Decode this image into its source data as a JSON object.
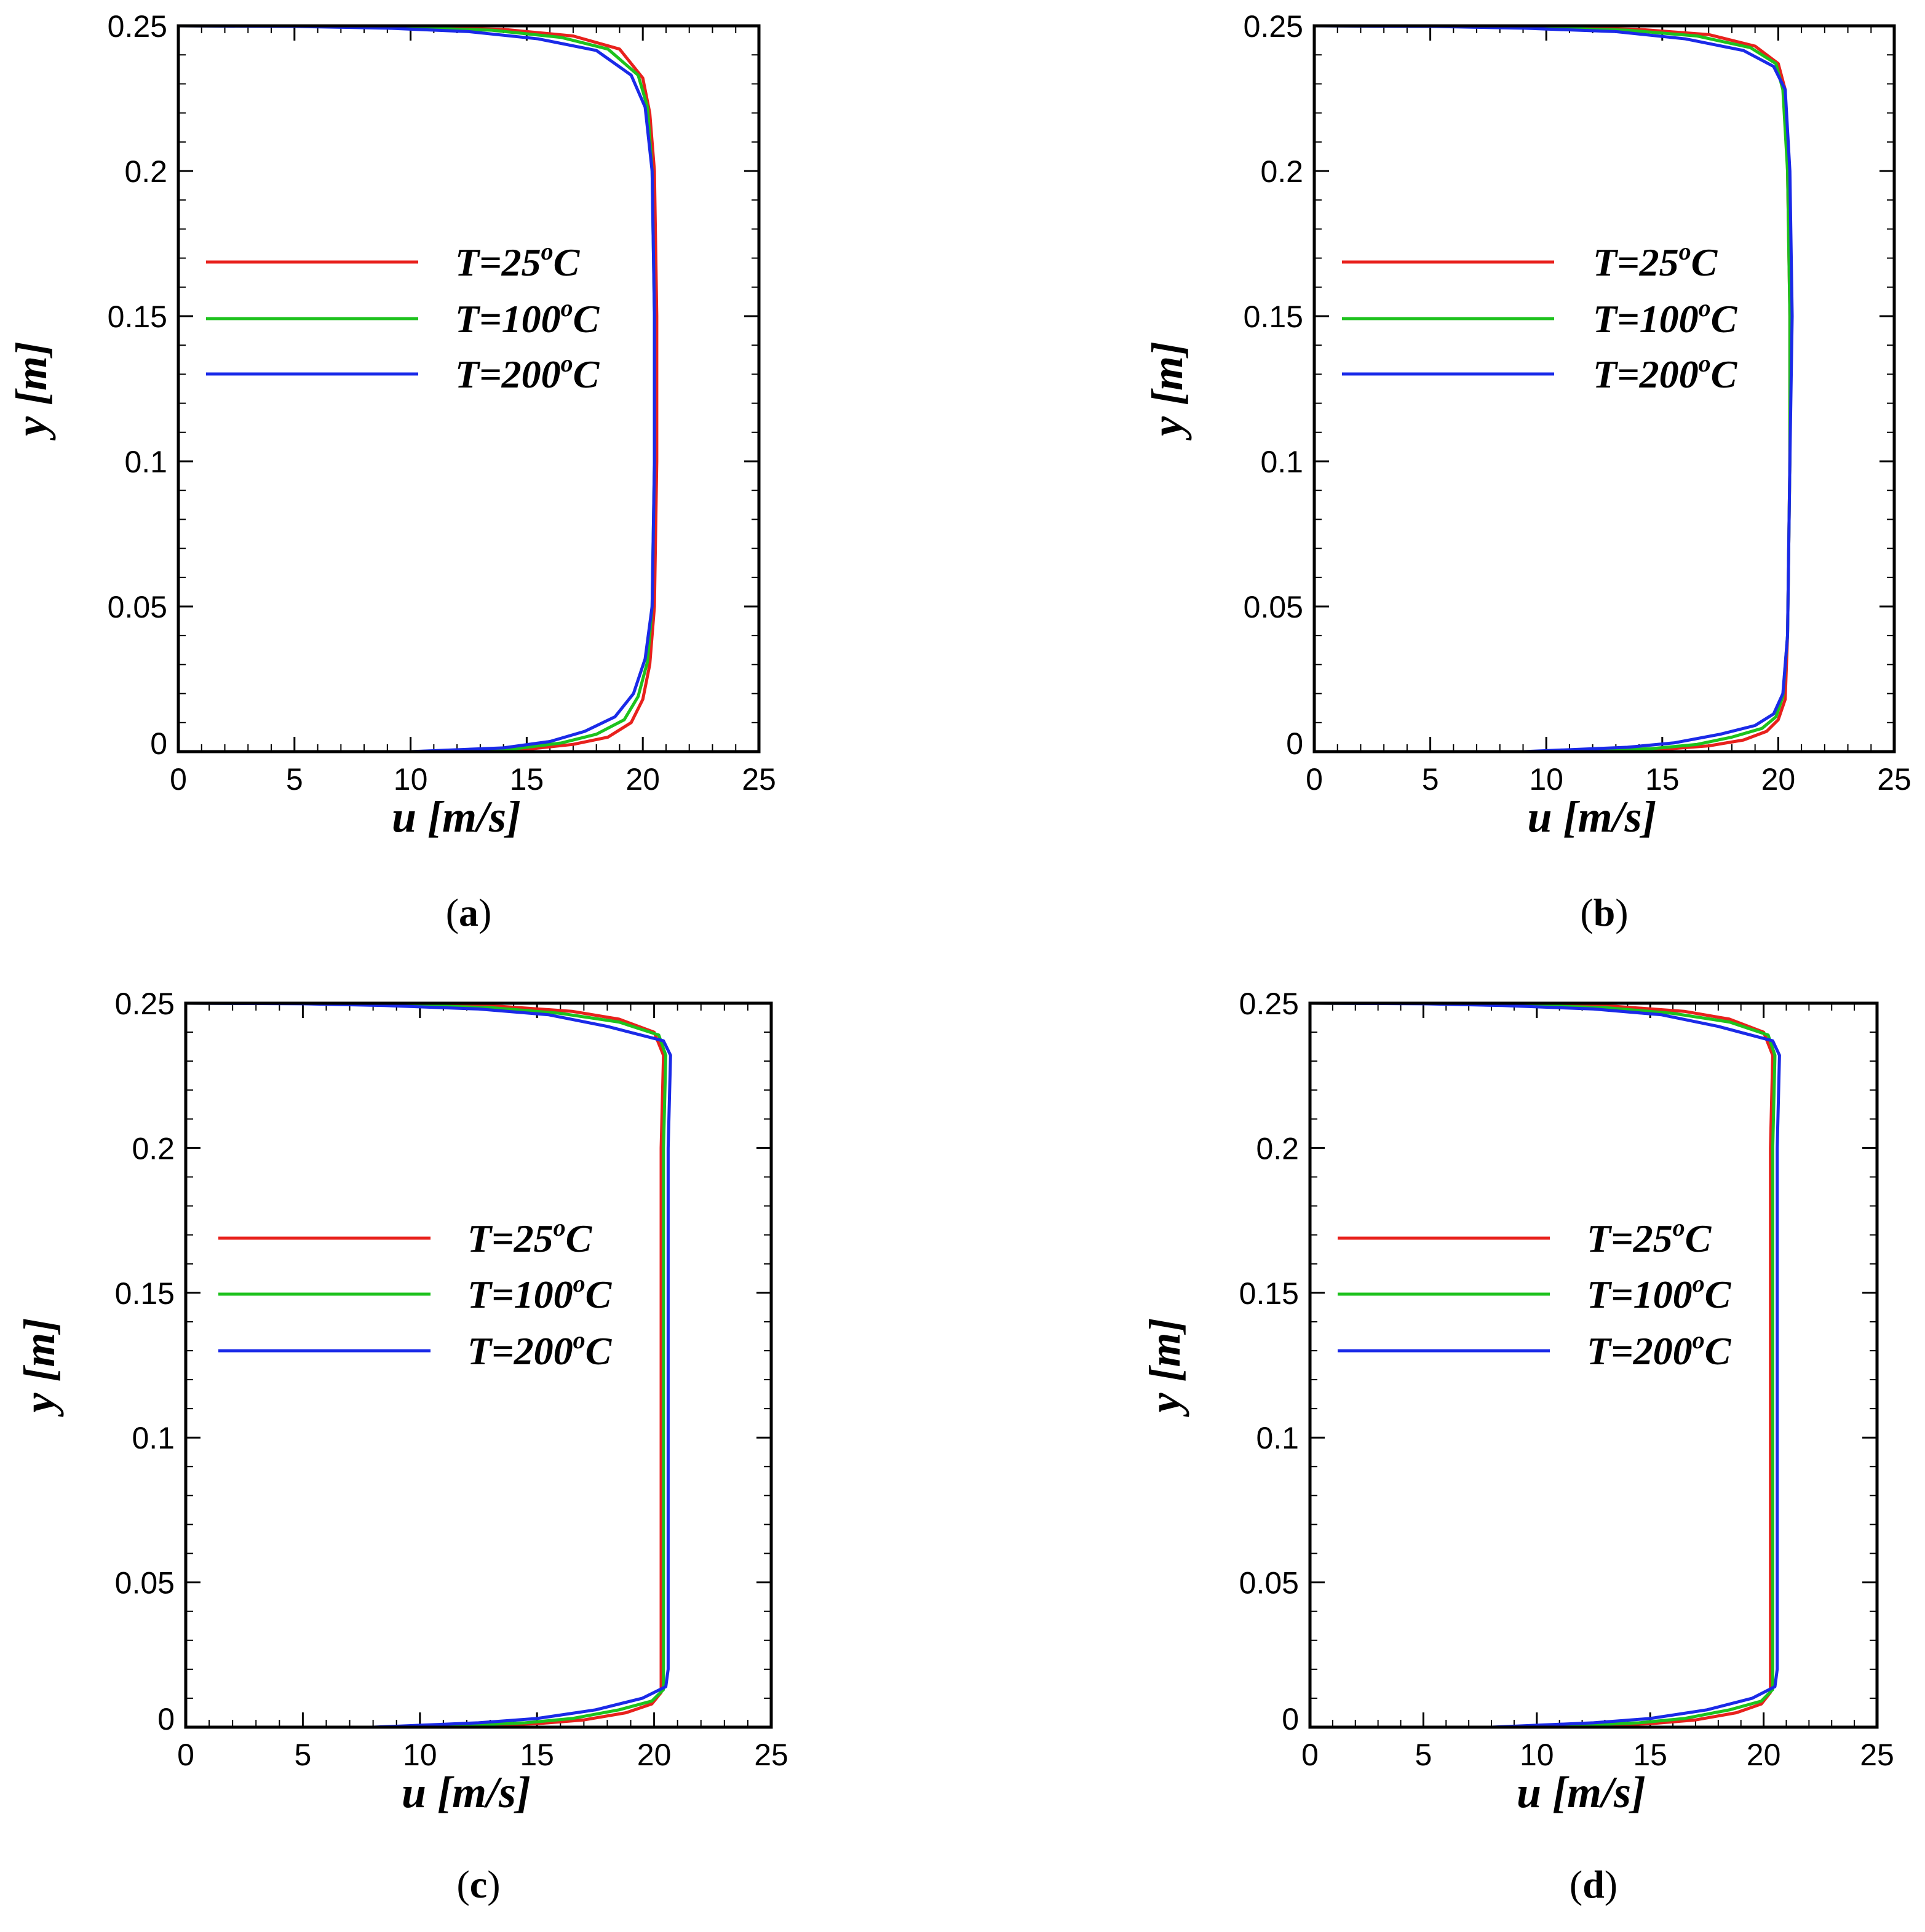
{
  "chart_data": [
    {
      "type": "line",
      "panel_label": "a",
      "xlabel": "u [m/s]",
      "ylabel": "y [m]",
      "xlim": [
        0,
        25
      ],
      "ylim": [
        0,
        0.25
      ],
      "xticks": [
        "0",
        "5",
        "10",
        "15",
        "20",
        "25"
      ],
      "yticks": [
        "0",
        "0.05",
        "0.1",
        "0.15",
        "0.2",
        "0.25"
      ],
      "grid": false,
      "legend_position": "upper-left",
      "series": [
        {
          "name": "T=25°C",
          "legend_main": "T=25",
          "legend_sup": "o",
          "legend_tail": "C",
          "color": "#e8211c",
          "x": [
            0,
            10,
            15,
            17,
            18.5,
            19.5,
            20.0,
            20.3,
            20.5,
            20.6,
            20.6,
            20.5,
            20.3,
            20.0,
            19.0,
            17.0,
            14.0,
            10.0,
            5.0,
            0
          ],
          "y": [
            0.0,
            0.0,
            0.0008,
            0.0025,
            0.005,
            0.01,
            0.018,
            0.03,
            0.05,
            0.1,
            0.15,
            0.2,
            0.22,
            0.232,
            0.242,
            0.2465,
            0.2488,
            0.2495,
            0.2499,
            0.25
          ]
        },
        {
          "name": "T=100°C",
          "legend_main": "T=100",
          "legend_sup": "o",
          "legend_tail": "C",
          "color": "#1dc21d",
          "x": [
            0,
            10,
            14.5,
            16.5,
            18.0,
            19.2,
            19.8,
            20.2,
            20.4,
            20.5,
            20.5,
            20.4,
            20.2,
            19.8,
            18.5,
            16.5,
            13.5,
            9.5,
            5.0,
            0
          ],
          "y": [
            0.0,
            0.0,
            0.001,
            0.003,
            0.006,
            0.011,
            0.019,
            0.031,
            0.05,
            0.1,
            0.15,
            0.2,
            0.222,
            0.233,
            0.242,
            0.246,
            0.2485,
            0.2494,
            0.2499,
            0.25
          ]
        },
        {
          "name": "T=200°C",
          "legend_main": "T=200",
          "legend_sup": "o",
          "legend_tail": "C",
          "color": "#1a2ae8",
          "x": [
            0,
            10,
            14,
            16,
            17.5,
            18.8,
            19.6,
            20.1,
            20.4,
            20.5,
            20.5,
            20.4,
            20.1,
            19.5,
            18.0,
            15.5,
            12.5,
            9.0,
            5.0,
            0
          ],
          "y": [
            0.0,
            0.0,
            0.0013,
            0.0035,
            0.007,
            0.012,
            0.02,
            0.032,
            0.05,
            0.1,
            0.15,
            0.2,
            0.222,
            0.233,
            0.2415,
            0.2455,
            0.248,
            0.2492,
            0.2498,
            0.25
          ]
        }
      ]
    },
    {
      "type": "line",
      "panel_label": "b",
      "xlabel": "u [m/s]",
      "ylabel": "y [m]",
      "xlim": [
        0,
        25
      ],
      "ylim": [
        0,
        0.25
      ],
      "xticks": [
        "0",
        "5",
        "10",
        "15",
        "20",
        "25"
      ],
      "yticks": [
        "0",
        "0.05",
        "0.1",
        "0.15",
        "0.2",
        "0.25"
      ],
      "grid": false,
      "legend_position": "upper-left",
      "series": [
        {
          "name": "T=25°C",
          "legend_main": "T=25",
          "legend_sup": "o",
          "legend_tail": "C",
          "color": "#e8211c",
          "x": [
            0,
            10,
            15,
            17,
            18.5,
            19.5,
            20.0,
            20.3,
            20.4,
            20.5,
            20.5,
            20.4,
            20.3,
            20.0,
            19.0,
            17.0,
            14.0,
            10.0,
            5.0,
            0
          ],
          "y": [
            0.0,
            0.0,
            0.0008,
            0.002,
            0.004,
            0.007,
            0.011,
            0.018,
            0.04,
            0.1,
            0.15,
            0.2,
            0.228,
            0.237,
            0.243,
            0.247,
            0.2488,
            0.2495,
            0.2499,
            0.25
          ]
        },
        {
          "name": "T=100°C",
          "legend_main": "T=100",
          "legend_sup": "o",
          "legend_tail": "C",
          "color": "#1dc21d",
          "x": [
            0,
            10,
            14.5,
            16.5,
            18.0,
            19.3,
            19.9,
            20.2,
            20.4,
            20.5,
            20.5,
            20.4,
            20.2,
            19.9,
            18.8,
            16.5,
            13.5,
            9.5,
            5.0,
            0
          ],
          "y": [
            0.0,
            0.0,
            0.001,
            0.0025,
            0.005,
            0.008,
            0.012,
            0.019,
            0.04,
            0.1,
            0.15,
            0.2,
            0.228,
            0.237,
            0.2425,
            0.2465,
            0.2485,
            0.2494,
            0.2499,
            0.25
          ]
        },
        {
          "name": "T=200°C",
          "legend_main": "T=200",
          "legend_sup": "o",
          "legend_tail": "C",
          "color": "#1a2ae8",
          "x": [
            0,
            9,
            13.5,
            15.5,
            17.5,
            19.0,
            19.8,
            20.2,
            20.4,
            20.5,
            20.6,
            20.5,
            20.3,
            19.8,
            18.5,
            16.0,
            13.0,
            9.0,
            5.0,
            0
          ],
          "y": [
            0.0,
            0.0,
            0.0015,
            0.003,
            0.006,
            0.009,
            0.013,
            0.02,
            0.04,
            0.1,
            0.15,
            0.2,
            0.228,
            0.236,
            0.2415,
            0.2455,
            0.248,
            0.2492,
            0.2498,
            0.25
          ]
        }
      ]
    },
    {
      "type": "line",
      "panel_label": "c",
      "xlabel": "u [m/s]",
      "ylabel": "y [m]",
      "xlim": [
        0,
        25
      ],
      "ylim": [
        0,
        0.25
      ],
      "xticks": [
        "0",
        "5",
        "10",
        "15",
        "20",
        "25"
      ],
      "yticks": [
        "0",
        "0.05",
        "0.1",
        "0.15",
        "0.2",
        "0.25"
      ],
      "grid": false,
      "legend_position": "upper-left",
      "series": [
        {
          "name": "T=25°C",
          "legend_main": "T=25",
          "legend_sup": "o",
          "legend_tail": "C",
          "color": "#e8211c",
          "x": [
            0,
            10,
            15,
            17,
            18.8,
            19.9,
            20.3,
            20.3,
            20.3,
            20.3,
            20.3,
            20.3,
            20.4,
            20.0,
            18.5,
            16.5,
            13.5,
            9.5,
            5.0,
            0
          ],
          "y": [
            0.0,
            0.0,
            0.0012,
            0.0025,
            0.005,
            0.008,
            0.012,
            0.02,
            0.05,
            0.1,
            0.15,
            0.2,
            0.232,
            0.24,
            0.2445,
            0.2472,
            0.2489,
            0.2495,
            0.2499,
            0.25
          ]
        },
        {
          "name": "T=100°C",
          "legend_main": "T=100",
          "legend_sup": "o",
          "legend_tail": "C",
          "color": "#1dc21d",
          "x": [
            0,
            10,
            14.5,
            16.5,
            18.5,
            19.9,
            20.4,
            20.4,
            20.4,
            20.4,
            20.4,
            20.4,
            20.5,
            20.2,
            18.5,
            16.0,
            13.0,
            9.0,
            5.0,
            0
          ],
          "y": [
            0.0,
            0.0,
            0.0015,
            0.003,
            0.006,
            0.009,
            0.013,
            0.02,
            0.05,
            0.1,
            0.15,
            0.2,
            0.232,
            0.239,
            0.2435,
            0.2465,
            0.2485,
            0.2494,
            0.2499,
            0.25
          ]
        },
        {
          "name": "T=200°C",
          "legend_main": "T=200",
          "legend_sup": "o",
          "legend_tail": "C",
          "color": "#1a2ae8",
          "x": [
            0,
            8,
            12.5,
            15.0,
            17.5,
            19.5,
            20.5,
            20.6,
            20.6,
            20.6,
            20.6,
            20.6,
            20.7,
            20.4,
            18.0,
            15.5,
            12.5,
            8.5,
            5.0,
            0
          ],
          "y": [
            0.0,
            0.0,
            0.0015,
            0.003,
            0.006,
            0.01,
            0.014,
            0.02,
            0.05,
            0.1,
            0.15,
            0.2,
            0.232,
            0.237,
            0.242,
            0.246,
            0.248,
            0.2492,
            0.2498,
            0.25
          ]
        }
      ]
    },
    {
      "type": "line",
      "panel_label": "d",
      "xlabel": "u [m/s]",
      "ylabel": "y [m]",
      "xlim": [
        0,
        25
      ],
      "ylim": [
        0,
        0.25
      ],
      "xticks": [
        "0",
        "5",
        "10",
        "15",
        "20",
        "25"
      ],
      "yticks": [
        "0",
        "0.05",
        "0.1",
        "0.15",
        "0.2",
        "0.25"
      ],
      "grid": false,
      "legend_position": "upper-left",
      "series": [
        {
          "name": "T=25°C",
          "legend_main": "T=25",
          "legend_sup": "o",
          "legend_tail": "C",
          "color": "#e8211c",
          "x": [
            0,
            10,
            15,
            17,
            18.8,
            19.9,
            20.3,
            20.3,
            20.3,
            20.3,
            20.3,
            20.3,
            20.4,
            20.0,
            18.5,
            16.5,
            13.5,
            9.5,
            5.0,
            0
          ],
          "y": [
            0.0,
            0.0,
            0.0012,
            0.0025,
            0.005,
            0.008,
            0.012,
            0.02,
            0.05,
            0.1,
            0.15,
            0.2,
            0.232,
            0.24,
            0.2445,
            0.2472,
            0.2489,
            0.2495,
            0.2499,
            0.25
          ]
        },
        {
          "name": "T=100°C",
          "legend_main": "T=100",
          "legend_sup": "o",
          "legend_tail": "C",
          "color": "#1dc21d",
          "x": [
            0,
            10,
            14.5,
            16.5,
            18.5,
            19.9,
            20.4,
            20.4,
            20.4,
            20.4,
            20.4,
            20.4,
            20.5,
            20.2,
            18.5,
            16.0,
            13.0,
            9.0,
            5.0,
            0
          ],
          "y": [
            0.0,
            0.0,
            0.0015,
            0.003,
            0.006,
            0.009,
            0.013,
            0.02,
            0.05,
            0.1,
            0.15,
            0.2,
            0.232,
            0.239,
            0.2435,
            0.2465,
            0.2485,
            0.2494,
            0.2499,
            0.25
          ]
        },
        {
          "name": "T=200°C",
          "legend_main": "T=200",
          "legend_sup": "o",
          "legend_tail": "C",
          "color": "#1a2ae8",
          "x": [
            0,
            8,
            12.5,
            15.0,
            17.5,
            19.5,
            20.5,
            20.6,
            20.6,
            20.6,
            20.6,
            20.6,
            20.7,
            20.4,
            18.0,
            15.5,
            12.5,
            8.5,
            5.0,
            0
          ],
          "y": [
            0.0,
            0.0,
            0.0015,
            0.003,
            0.006,
            0.01,
            0.014,
            0.02,
            0.05,
            0.1,
            0.15,
            0.2,
            0.232,
            0.237,
            0.242,
            0.246,
            0.248,
            0.2492,
            0.2498,
            0.25
          ]
        }
      ]
    }
  ]
}
